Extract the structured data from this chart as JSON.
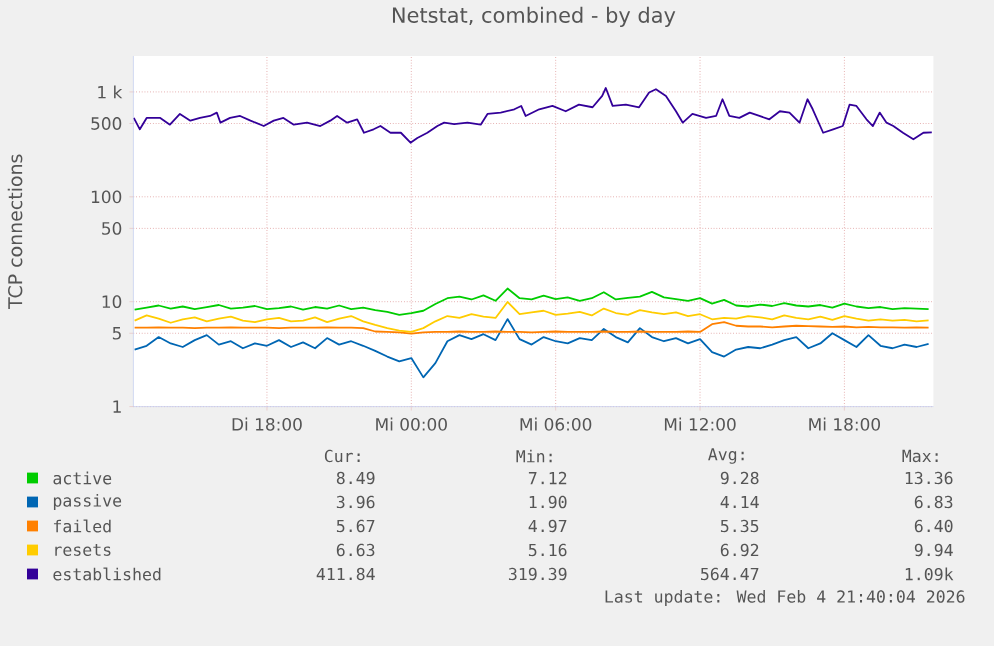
{
  "chart_data": {
    "type": "line",
    "title": "Netstat, combined - by day",
    "ylabel": "TCP connections",
    "x": [
      "2026-02-03T12:30",
      "2026-02-03T13:00",
      "2026-02-03T13:30",
      "2026-02-03T14:00",
      "2026-02-03T14:30",
      "2026-02-03T15:00",
      "2026-02-03T15:30",
      "2026-02-03T16:00",
      "2026-02-03T16:30",
      "2026-02-03T17:00",
      "2026-02-03T17:30",
      "2026-02-03T18:00",
      "2026-02-03T18:30",
      "2026-02-03T19:00",
      "2026-02-03T19:30",
      "2026-02-03T20:00",
      "2026-02-03T20:30",
      "2026-02-03T21:00",
      "2026-02-03T21:30",
      "2026-02-03T22:00",
      "2026-02-03T22:30",
      "2026-02-03T23:00",
      "2026-02-03T23:30",
      "2026-02-04T00:00",
      "2026-02-04T00:30",
      "2026-02-04T01:00",
      "2026-02-04T01:30",
      "2026-02-04T02:00",
      "2026-02-04T02:30",
      "2026-02-04T03:00",
      "2026-02-04T03:30",
      "2026-02-04T04:00",
      "2026-02-04T04:30",
      "2026-02-04T05:00",
      "2026-02-04T05:30",
      "2026-02-04T06:00",
      "2026-02-04T06:30",
      "2026-02-04T07:00",
      "2026-02-04T07:30",
      "2026-02-04T08:00",
      "2026-02-04T08:30",
      "2026-02-04T09:00",
      "2026-02-04T09:30",
      "2026-02-04T10:00",
      "2026-02-04T10:30",
      "2026-02-04T11:00",
      "2026-02-04T11:30",
      "2026-02-04T12:00",
      "2026-02-04T12:30",
      "2026-02-04T13:00",
      "2026-02-04T13:30",
      "2026-02-04T14:00",
      "2026-02-04T14:30",
      "2026-02-04T15:00",
      "2026-02-04T15:30",
      "2026-02-04T16:00",
      "2026-02-04T16:30",
      "2026-02-04T17:00",
      "2026-02-04T17:30",
      "2026-02-04T18:00",
      "2026-02-04T18:30",
      "2026-02-04T19:00",
      "2026-02-04T19:30",
      "2026-02-04T20:00",
      "2026-02-04T20:30",
      "2026-02-04T21:00",
      "2026-02-04T21:30"
    ],
    "xlim": [
      "2026-02-03T12:27",
      "2026-02-04T21:42"
    ],
    "xticks": [
      {
        "value": "2026-02-03T18:00",
        "label": "Di 18:00"
      },
      {
        "value": "2026-02-04T00:00",
        "label": "Mi 00:00"
      },
      {
        "value": "2026-02-04T06:00",
        "label": "Mi 06:00"
      },
      {
        "value": "2026-02-04T12:00",
        "label": "Mi 12:00"
      },
      {
        "value": "2026-02-04T18:00",
        "label": "Mi 18:00"
      }
    ],
    "ylim": [
      1,
      2200
    ],
    "yticks": [
      1,
      5,
      10,
      50,
      100,
      500,
      {
        "value": 1000,
        "label": "1 k"
      }
    ],
    "log": "y",
    "grid": true,
    "legend": "bottom",
    "series": [
      {
        "name": "active",
        "color": "#00cc00",
        "values": [
          8.4,
          8.8,
          9.2,
          8.6,
          9.0,
          8.5,
          8.9,
          9.3,
          8.6,
          8.8,
          9.1,
          8.5,
          8.7,
          9.0,
          8.4,
          8.9,
          8.6,
          9.2,
          8.5,
          8.8,
          8.3,
          8.0,
          7.5,
          7.8,
          8.2,
          9.5,
          10.8,
          11.2,
          10.5,
          11.5,
          10.2,
          13.36,
          10.8,
          10.5,
          11.4,
          10.6,
          11.0,
          10.2,
          10.8,
          12.3,
          10.5,
          10.9,
          11.2,
          12.4,
          11.0,
          10.6,
          10.2,
          10.8,
          9.6,
          10.4,
          9.2,
          9.0,
          9.4,
          9.1,
          9.7,
          9.2,
          9.0,
          9.3,
          8.8,
          9.6,
          9.0,
          8.7,
          8.9,
          8.5,
          8.7,
          8.6,
          8.49
        ]
      },
      {
        "name": "passive",
        "color": "#0066b3",
        "values": [
          3.5,
          3.8,
          4.6,
          4.0,
          3.7,
          4.3,
          4.8,
          3.9,
          4.2,
          3.6,
          4.0,
          3.8,
          4.3,
          3.7,
          4.1,
          3.6,
          4.5,
          3.9,
          4.2,
          3.8,
          3.4,
          3.0,
          2.7,
          2.9,
          1.9,
          2.6,
          4.2,
          4.8,
          4.4,
          4.9,
          4.3,
          6.83,
          4.4,
          3.9,
          4.6,
          4.2,
          4.0,
          4.5,
          4.3,
          5.5,
          4.6,
          4.1,
          5.6,
          4.6,
          4.2,
          4.5,
          4.0,
          4.4,
          3.3,
          3.0,
          3.5,
          3.7,
          3.6,
          3.9,
          4.3,
          4.6,
          3.6,
          4.0,
          5.0,
          4.3,
          3.7,
          4.8,
          3.8,
          3.6,
          3.9,
          3.7,
          3.96
        ]
      },
      {
        "name": "failed",
        "color": "#ff8000",
        "values": [
          5.65,
          5.65,
          5.7,
          5.65,
          5.65,
          5.6,
          5.65,
          5.65,
          5.7,
          5.65,
          5.65,
          5.65,
          5.6,
          5.65,
          5.65,
          5.65,
          5.7,
          5.65,
          5.65,
          5.6,
          5.2,
          5.15,
          5.1,
          4.97,
          5.1,
          5.15,
          5.15,
          5.2,
          5.15,
          5.15,
          5.2,
          5.15,
          5.15,
          5.1,
          5.15,
          5.2,
          5.15,
          5.15,
          5.15,
          5.2,
          5.15,
          5.15,
          5.2,
          5.15,
          5.15,
          5.15,
          5.2,
          5.15,
          6.1,
          6.4,
          5.9,
          5.8,
          5.8,
          5.7,
          5.8,
          5.9,
          5.85,
          5.8,
          5.75,
          5.8,
          5.7,
          5.75,
          5.7,
          5.7,
          5.65,
          5.7,
          5.67
        ]
      },
      {
        "name": "resets",
        "color": "#ffcc00",
        "values": [
          6.6,
          7.4,
          6.9,
          6.3,
          6.8,
          7.1,
          6.5,
          6.9,
          7.2,
          6.6,
          6.4,
          6.8,
          7.0,
          6.5,
          6.6,
          7.1,
          6.4,
          6.9,
          7.3,
          6.5,
          6.0,
          5.6,
          5.3,
          5.16,
          5.6,
          6.5,
          7.3,
          7.0,
          7.6,
          7.2,
          7.0,
          9.94,
          7.6,
          7.9,
          8.2,
          7.5,
          7.7,
          8.0,
          7.4,
          8.6,
          7.8,
          7.5,
          8.3,
          7.9,
          7.6,
          7.9,
          7.3,
          7.6,
          6.8,
          7.0,
          6.9,
          7.3,
          7.1,
          6.8,
          7.4,
          7.0,
          6.8,
          7.2,
          6.7,
          7.3,
          6.9,
          6.6,
          6.8,
          6.6,
          6.7,
          6.5,
          6.63
        ]
      },
      {
        "name": "established",
        "color": "#330099",
        "x": [
          "2026-02-03T12:28",
          "2026-02-03T12:43",
          "2026-02-03T13:00",
          "2026-02-03T13:34",
          "2026-02-03T13:58",
          "2026-02-03T14:23",
          "2026-02-03T14:49",
          "2026-02-03T15:13",
          "2026-02-03T15:38",
          "2026-02-03T15:55",
          "2026-02-03T16:04",
          "2026-02-03T16:28",
          "2026-02-03T16:53",
          "2026-02-03T17:19",
          "2026-02-03T17:52",
          "2026-02-03T18:17",
          "2026-02-03T18:41",
          "2026-02-03T19:07",
          "2026-02-03T19:40",
          "2026-02-03T20:13",
          "2026-02-03T20:38",
          "2026-02-03T20:55",
          "2026-02-03T21:20",
          "2026-02-03T21:45",
          "2026-02-03T22:02",
          "2026-02-03T22:26",
          "2026-02-03T22:43",
          "2026-02-03T23:08",
          "2026-02-03T23:34",
          "2026-02-03T23:58",
          "2026-02-04T00:15",
          "2026-02-04T00:40",
          "2026-02-04T01:05",
          "2026-02-04T01:22",
          "2026-02-04T01:47",
          "2026-02-04T02:20",
          "2026-02-04T02:53",
          "2026-02-04T03:10",
          "2026-02-04T03:43",
          "2026-02-04T04:17",
          "2026-02-04T04:34",
          "2026-02-04T04:45",
          "2026-02-04T05:19",
          "2026-02-04T05:52",
          "2026-02-04T06:25",
          "2026-02-04T06:58",
          "2026-02-04T07:32",
          "2026-02-04T07:56",
          "2026-02-04T08:05",
          "2026-02-04T08:22",
          "2026-02-04T08:55",
          "2026-02-04T09:28",
          "2026-02-04T09:53",
          "2026-02-04T10:10",
          "2026-02-04T10:35",
          "2026-02-04T11:00",
          "2026-02-04T11:17",
          "2026-02-04T11:41",
          "2026-02-04T12:15",
          "2026-02-04T12:40",
          "2026-02-04T12:56",
          "2026-02-04T13:13",
          "2026-02-04T13:38",
          "2026-02-04T14:04",
          "2026-02-04T14:28",
          "2026-02-04T14:53",
          "2026-02-04T15:19",
          "2026-02-04T15:43",
          "2026-02-04T16:08",
          "2026-02-04T16:28",
          "2026-02-04T16:41",
          "2026-02-04T17:07",
          "2026-02-04T17:32",
          "2026-02-04T17:56",
          "2026-02-04T18:13",
          "2026-02-04T18:30",
          "2026-02-04T18:55",
          "2026-02-04T19:11",
          "2026-02-04T19:28",
          "2026-02-04T19:45",
          "2026-02-04T20:02",
          "2026-02-04T20:26",
          "2026-02-04T20:52",
          "2026-02-04T21:17",
          "2026-02-04T21:38"
        ],
        "values": [
          565,
          440,
          565,
          565,
          487,
          617,
          532,
          565,
          590,
          635,
          509,
          565,
          590,
          532,
          473,
          532,
          565,
          487,
          509,
          473,
          532,
          590,
          509,
          548,
          408,
          440,
          473,
          408,
          408,
          328,
          364,
          408,
          473,
          509,
          494,
          509,
          487,
          617,
          635,
          683,
          735,
          590,
          683,
          735,
          654,
          757,
          714,
          916,
          1090,
          735,
          757,
          714,
          986,
          1060,
          916,
          654,
          509,
          617,
          565,
          590,
          851,
          590,
          565,
          635,
          590,
          548,
          654,
          635,
          509,
          851,
          683,
          408,
          440,
          473,
          757,
          735,
          548,
          473,
          635,
          509,
          473,
          408,
          353,
          408,
          411.84
        ]
      }
    ],
    "annotations": [
      "Cur:",
      "Min:",
      "Avg:",
      "Max:",
      "8.49",
      "7.12",
      "9.28",
      "13.36",
      "3.96",
      "1.90",
      "4.14",
      "6.83",
      "5.67",
      "4.97",
      "5.35",
      "6.40",
      "6.63",
      "5.16",
      "6.92",
      "9.94",
      "411.84",
      "319.39",
      "564.47",
      "1.09k",
      "Last update: Wed Feb 4 21:40:04 2026"
    ]
  }
}
